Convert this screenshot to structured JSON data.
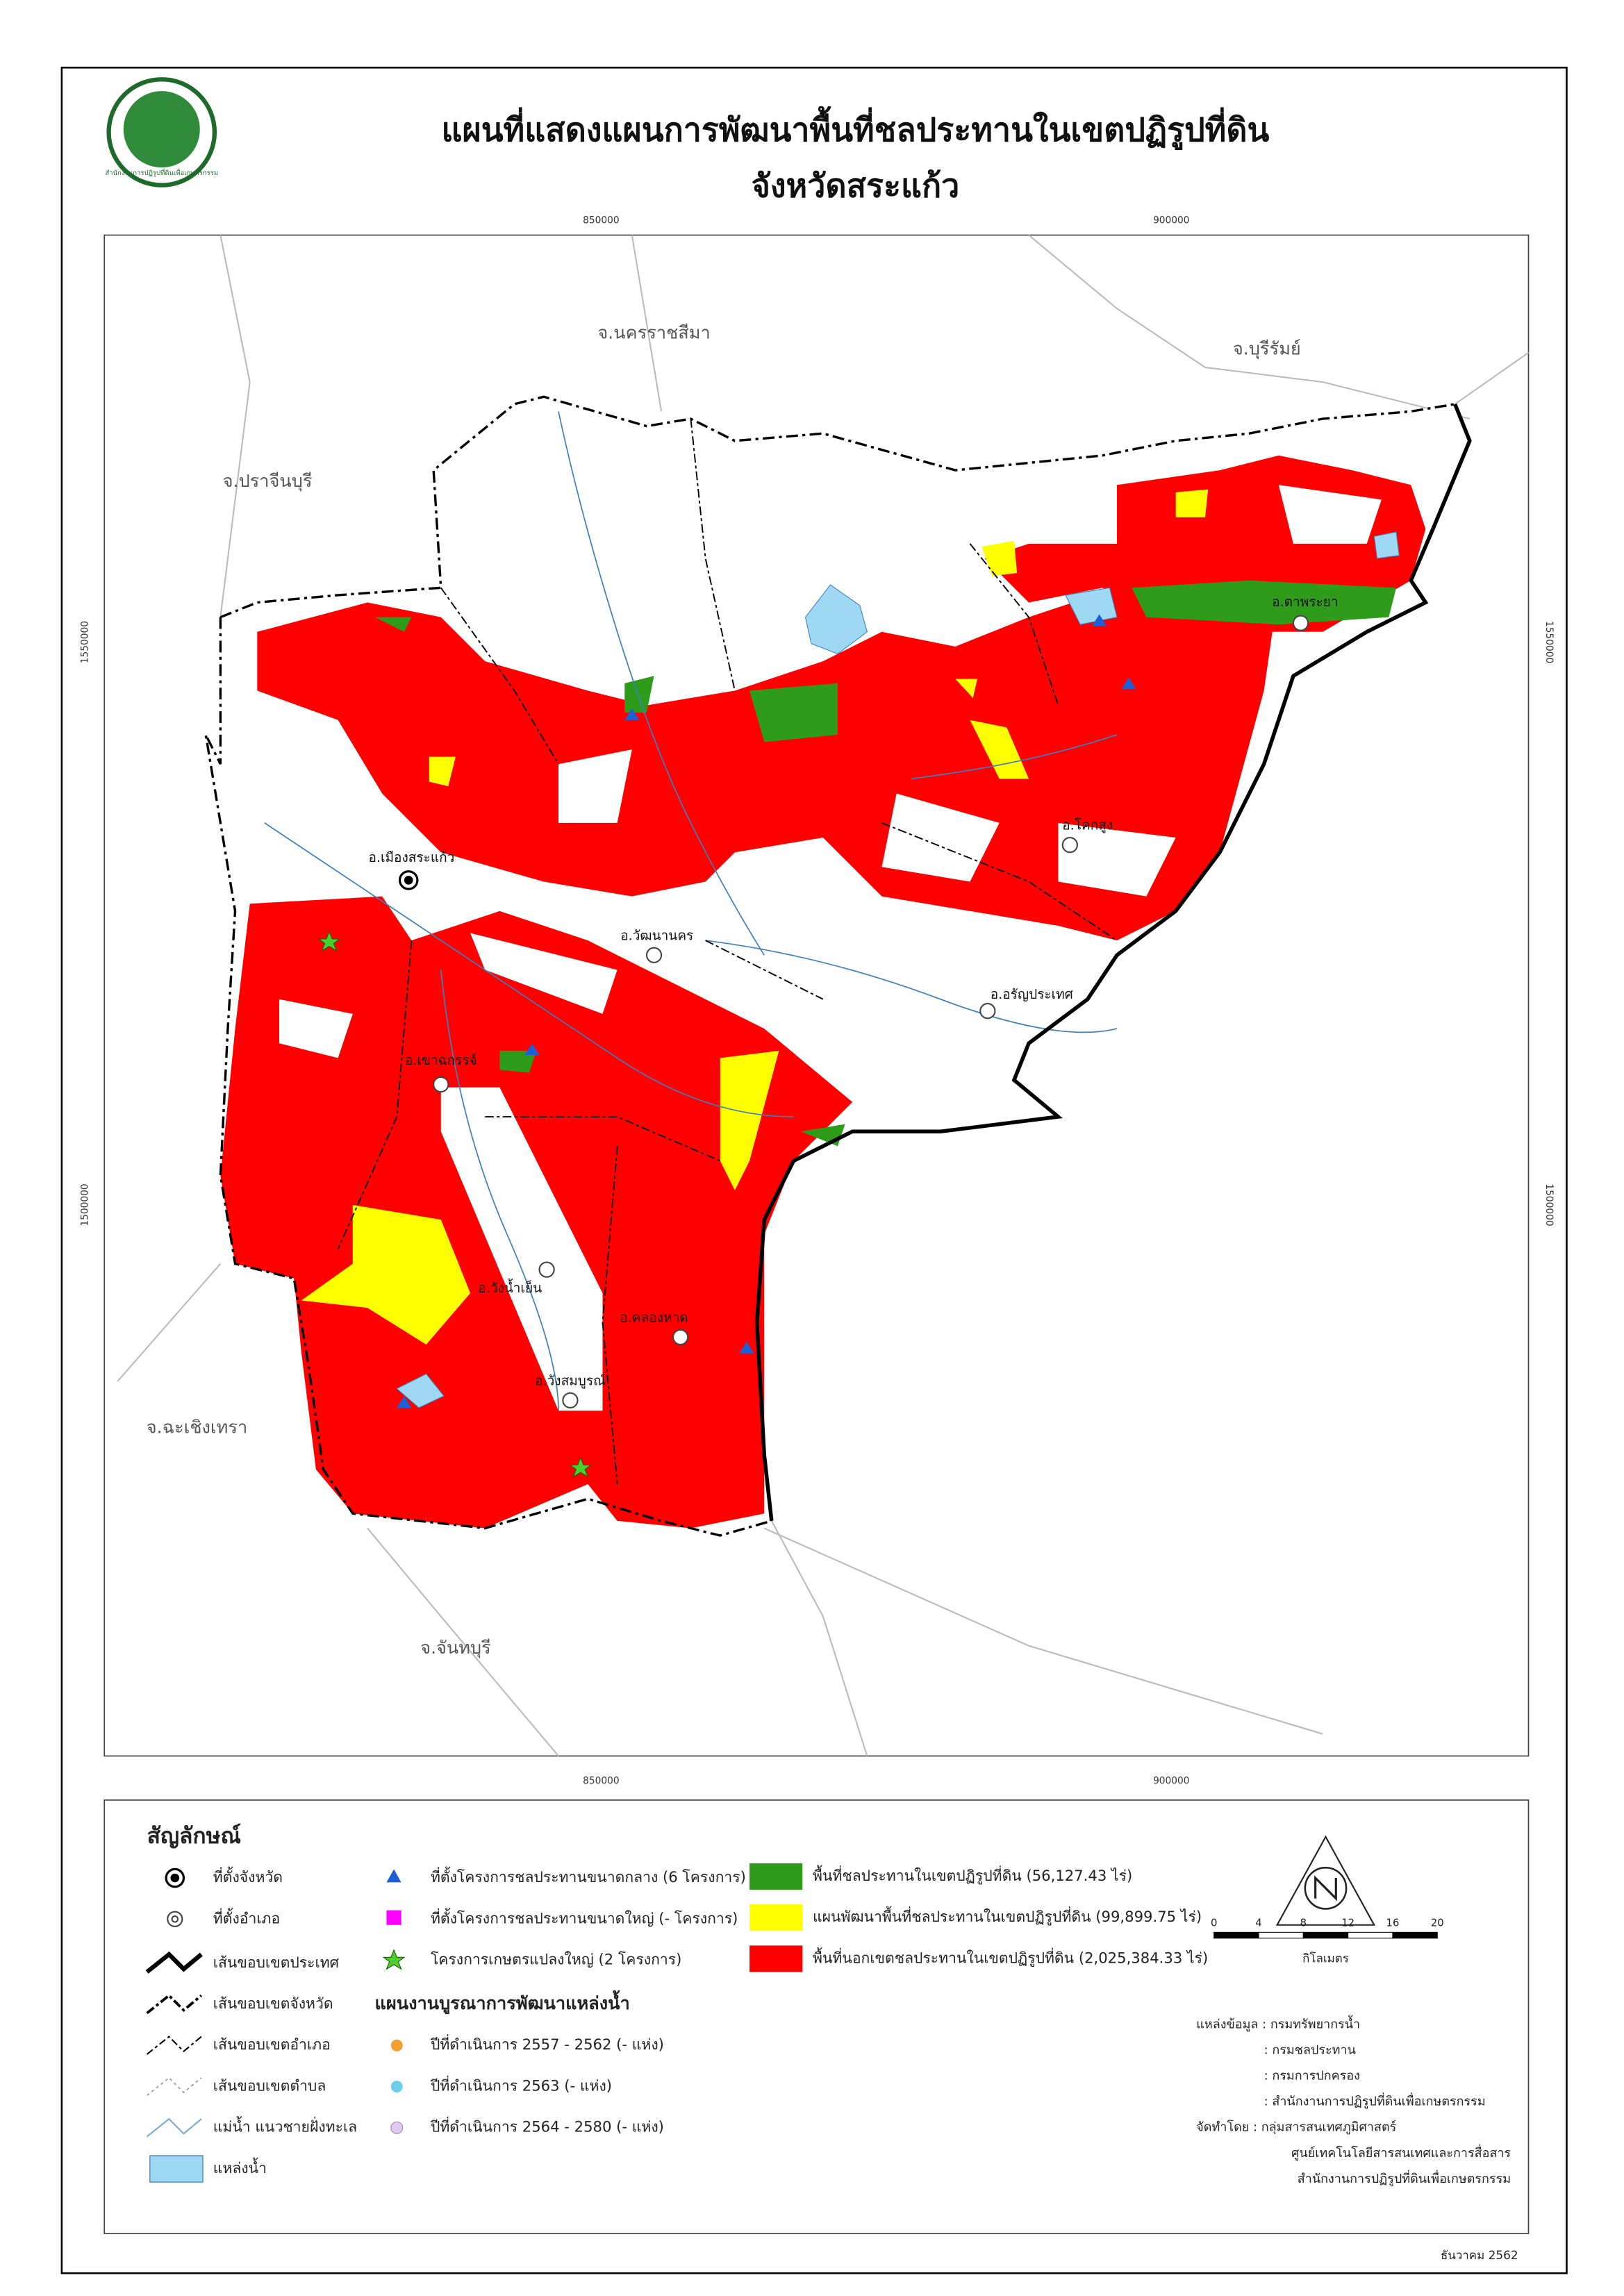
{
  "header": {
    "title": "แผนที่แสดงแผนการพัฒนาพื้นที่ชลประทานในเขตปฏิรูปที่ดิน",
    "subtitle": "จังหวัดสระแก้ว",
    "logo_text": "สำนักงานการปฏิรูปที่ดินเพื่อเกษตรกรรม"
  },
  "map": {
    "xticks": [
      850000,
      900000
    ],
    "yticks": [
      1550000,
      1500000
    ],
    "provinces": [
      "จ.นครราชสีมา",
      "จ.บุรีรัมย์",
      "จ.ปราจีนบุรี",
      "จ.ฉะเชิงเทรา",
      "จ.จันทบุรี"
    ],
    "districts": [
      "อ.เมืองสระแก้ว",
      "อ.วัฒนานคร",
      "อ.อรัญประเทศ",
      "อ.เขาฉกรรจ์",
      "อ.วังน้ำเย็น",
      "อ.คลองหาด",
      "อ.วังสมบูรณ์",
      "อ.โคกสูง",
      "อ.ตาพระยา"
    ]
  },
  "legend": {
    "title": "สัญลักษณ์",
    "symbols": [
      "ที่ตั้งจังหวัด",
      "ที่ตั้งอำเภอ",
      "เส้นขอบเขตประเทศ",
      "เส้นขอบเขตจังหวัด",
      "เส้นขอบเขตอำเภอ",
      "เส้นขอบเขตตำบล",
      "แม่น้ำ แนวชายฝั่งทะเล",
      "แหล่งน้ำ"
    ],
    "projects": [
      "ที่ตั้งโครงการชลประทานขนาดกลาง (6 โครงการ)",
      "ที่ตั้งโครงการชลประทานขนาดใหญ่ (- โครงการ)",
      "โครงการเกษตรแปลงใหญ่ (2 โครงการ)"
    ],
    "water_title": "แผนงานบูรณาการพัฒนาแหล่งน้ำ",
    "water_items": [
      "ปีที่ดำเนินการ 2557 - 2562 (- แห่ง)",
      "ปีที่ดำเนินการ 2563 (- แห่ง)",
      "ปีที่ดำเนินการ 2564 - 2580 (- แห่ง)"
    ],
    "areas": [
      "พื้นที่ชลประทานในเขตปฏิรูปที่ดิน (56,127.43 ไร่)",
      "แผนพัฒนาพื้นที่ชลประทานในเขตปฏิรูปที่ดิน (99,899.75 ไร่)",
      "พื้นที่นอกเขตชลประทานในเขตปฏิรูปที่ดิน (2,025,384.33 ไร่)"
    ]
  },
  "scale": {
    "ticks": [
      0,
      4,
      8,
      12,
      16,
      20
    ],
    "unit": "กิโลเมตร"
  },
  "credits": {
    "lines": [
      "แหล่งข้อมูล : กรมทรัพยากรน้ำ",
      ": กรมชลประทาน",
      ": กรมการปกครอง",
      ": สำนักงานการปฏิรูปที่ดินเพื่อเกษตรกรรม",
      "จัดทำโดย : กลุ่มสารสนเทศภูมิศาสตร์",
      "ศูนย์เทคโนโลยีสารสนเทศและการสื่อสาร",
      "สำนักงานการปฏิรูปที่ดินเพื่อเกษตรกรรม"
    ]
  },
  "date": "ธันวาคม 2562"
}
